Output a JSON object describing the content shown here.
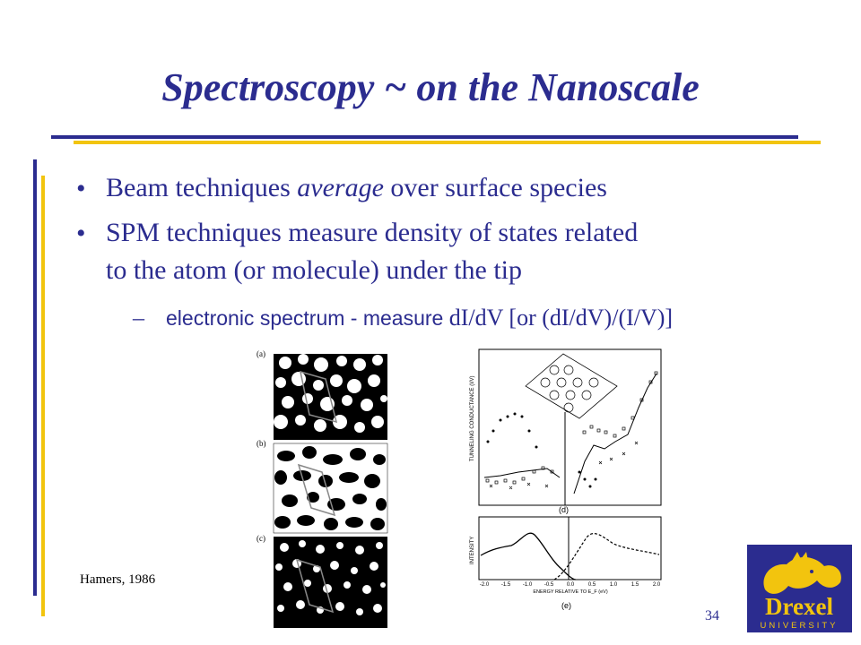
{
  "slide": {
    "title": "Spectroscopy ~ on the Nanoscale",
    "bullets": [
      {
        "pre": "Beam techniques ",
        "em": "average",
        "post": " over surface species"
      },
      {
        "line1": "SPM techniques measure density of states related",
        "line2": "to the atom (or molecule) under the tip"
      }
    ],
    "sub_bullet": {
      "dash": "–",
      "sans_part": "electronic spectrum - measure ",
      "serif_part": "dI/dV [or (dI/dV)/(I/V)]"
    },
    "citation": "Hamers, 1986",
    "page_number": "34"
  },
  "figure_left": {
    "panel_labels": [
      "(a)",
      "(b)",
      "(c)"
    ]
  },
  "figure_right": {
    "top_panel": {
      "label": "(d)",
      "ylabel": "TUNNELING CONDUCTANCE (I/V)"
    },
    "bottom_panel": {
      "label": "(e)",
      "ylabel": "INTENSITY",
      "xlabel": "ENERGY RELATIVE TO E_F (eV)",
      "xticks": [
        "-2.0",
        "-1.5",
        "-1.0",
        "-0.5",
        "0.0",
        "0.5",
        "1.0",
        "1.5",
        "2.0"
      ]
    }
  },
  "logo": {
    "name": "Drexel",
    "sub": "UNIVERSITY",
    "colors": {
      "background": "#2b2c8f",
      "gold": "#f2c40e"
    }
  }
}
